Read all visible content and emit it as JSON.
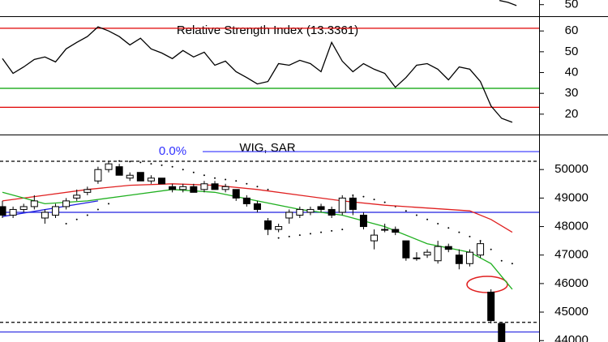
{
  "chart_data": [
    {
      "type": "line",
      "ylim": [
        47.5,
        51
      ],
      "yticks": [
        50
      ],
      "xlim": [
        -0.23,
        50.53
      ],
      "series": [
        {
          "color": "#000000",
          "x": [
            46.8,
            47.6,
            48.4
          ],
          "values": [
            50.9,
            50.5,
            49.8
          ]
        }
      ]
    },
    {
      "type": "line",
      "title": "Relative Strength Index (13.3361)",
      "ylim": [
        10.2,
        66.7
      ],
      "yticks": [
        20,
        30,
        40,
        50,
        60
      ],
      "xlim": [
        -0.23,
        50.53
      ],
      "levels": [
        {
          "value": 61.3,
          "color": "#e00000"
        },
        {
          "value": 23.3,
          "color": "#e00000"
        },
        {
          "value": 32.4,
          "color": "#00a000"
        }
      ],
      "series": [
        {
          "color": "#000000",
          "x": [
            0,
            1,
            2,
            3,
            4,
            5,
            6,
            7,
            8,
            9,
            10,
            11,
            12,
            13,
            14,
            15,
            16,
            17,
            18,
            19,
            20,
            21,
            22,
            23,
            24,
            25,
            26,
            27,
            28,
            29,
            30,
            31,
            32,
            33,
            34,
            35,
            36,
            37,
            38,
            39,
            40,
            41,
            42,
            43,
            44,
            45,
            46,
            47,
            48
          ],
          "values": [
            46.7,
            39.6,
            42.7,
            46.3,
            47.5,
            45.1,
            51.4,
            54.5,
            57.3,
            62,
            60,
            57.3,
            53.3,
            56.5,
            51.4,
            49.4,
            46.7,
            50.6,
            47.5,
            49.8,
            43.5,
            45.5,
            40.4,
            37.6,
            34.5,
            35.7,
            44.3,
            43.5,
            45.9,
            44.3,
            40.4,
            54.5,
            45.5,
            40.4,
            44.3,
            41.6,
            39.6,
            32.9,
            37.6,
            43.5,
            44.3,
            41.6,
            36.5,
            42.7,
            41.6,
            35.7,
            23.9,
            18,
            16.1
          ]
        }
      ]
    },
    {
      "type": "candlestick",
      "title": "WIG, SAR",
      "ylim": [
        43950,
        51200
      ],
      "yticks": [
        44000,
        45000,
        46000,
        47000,
        48000,
        49000,
        50000
      ],
      "xlim": [
        -0.23,
        50.53
      ],
      "levels": [
        {
          "value": 48500,
          "color": "#2020e0"
        },
        {
          "value": 44300,
          "color": "#2020e0"
        },
        {
          "value": 50290,
          "color": "#000000",
          "dash": true
        },
        {
          "value": 44640,
          "color": "#000000",
          "dash": true
        }
      ],
      "fib": {
        "label": "0.0%",
        "value": 50630,
        "color": "#3030ff"
      },
      "trend": {
        "color": "#2020e0",
        "x": [
          0,
          9
        ],
        "values": [
          48350,
          48900
        ]
      },
      "candles": {
        "x": [
          0,
          1,
          2,
          3,
          4,
          5,
          6,
          7,
          8,
          9,
          10,
          11,
          12,
          13,
          14,
          15,
          16,
          17,
          18,
          19,
          20,
          21,
          22,
          23,
          24,
          25,
          26,
          27,
          28,
          29,
          30,
          31,
          32,
          33,
          34,
          35,
          36,
          37,
          38,
          39,
          40,
          41,
          42,
          43,
          44,
          45,
          46,
          47
        ],
        "open": [
          48700,
          48400,
          48600,
          48700,
          48300,
          48400,
          48700,
          49000,
          49200,
          49600,
          50000,
          50100,
          49700,
          49900,
          49600,
          49700,
          49400,
          49300,
          49400,
          49300,
          49500,
          49300,
          49300,
          49000,
          48800,
          48200,
          47900,
          48300,
          48400,
          48500,
          48700,
          48600,
          48500,
          49000,
          48400,
          47500,
          47900,
          47900,
          47500,
          46900,
          47000,
          46800,
          47300,
          47000,
          46700,
          47000,
          45700,
          44600
        ],
        "high": [
          48900,
          48700,
          48800,
          49100,
          48600,
          48800,
          49000,
          49300,
          49400,
          50100,
          50300,
          50200,
          49900,
          49900,
          49800,
          49700,
          49500,
          49500,
          49500,
          49600,
          49600,
          49500,
          49300,
          49100,
          48900,
          48300,
          48100,
          48600,
          48700,
          48700,
          48800,
          48700,
          49100,
          49100,
          48500,
          47900,
          48100,
          48000,
          47500,
          47100,
          47200,
          47500,
          47400,
          47200,
          47200,
          47500,
          45800,
          44600
        ],
        "low": [
          48300,
          48300,
          48500,
          48600,
          48100,
          48300,
          48600,
          48900,
          49100,
          49500,
          49900,
          49800,
          49600,
          49600,
          49500,
          49500,
          49200,
          49200,
          49200,
          49200,
          49300,
          49200,
          48900,
          48700,
          48500,
          47700,
          47800,
          48100,
          48300,
          48400,
          48500,
          48300,
          48400,
          48400,
          47900,
          47200,
          47800,
          47700,
          46800,
          46800,
          46900,
          46700,
          47100,
          46500,
          46600,
          46900,
          44600,
          43900
        ],
        "close": [
          48400,
          48600,
          48700,
          48900,
          48500,
          48700,
          48900,
          49100,
          49300,
          50000,
          50200,
          49800,
          49800,
          49600,
          49700,
          49500,
          49300,
          49400,
          49200,
          49500,
          49300,
          49400,
          49000,
          48800,
          48600,
          47900,
          48000,
          48500,
          48600,
          48600,
          48600,
          48400,
          49000,
          48600,
          48000,
          47700,
          47900,
          47800,
          46900,
          46900,
          47100,
          47300,
          47200,
          46700,
          47100,
          47400,
          44700,
          43900
        ]
      },
      "sar": {
        "color": "#000000",
        "x": [
          6,
          7,
          8,
          9,
          10,
          11,
          12,
          13,
          14,
          15,
          16,
          17,
          18,
          19,
          20,
          21,
          22,
          23,
          24,
          25,
          26,
          27,
          28,
          29,
          30,
          31,
          32,
          33,
          34,
          35,
          36,
          37,
          38,
          39,
          40,
          41,
          42,
          43,
          44,
          45,
          46,
          47,
          48
        ],
        "values": [
          48100,
          48250,
          48400,
          48600,
          48800,
          50300,
          50280,
          50250,
          50200,
          50150,
          50100,
          50000,
          49900,
          49800,
          49700,
          49650,
          49600,
          49500,
          49400,
          49300,
          47600,
          47650,
          47700,
          47750,
          47800,
          47850,
          47900,
          49100,
          49050,
          48950,
          48850,
          48700,
          48550,
          48400,
          48250,
          48100,
          47950,
          47800,
          47650,
          47500,
          47200,
          46800,
          46700
        ]
      },
      "series": [
        {
          "color": "#e02020",
          "x": [
            0,
            4,
            8,
            12,
            16,
            20,
            24,
            28,
            32,
            36,
            40,
            44,
            46,
            48
          ],
          "values": [
            48900,
            49100,
            49300,
            49450,
            49500,
            49450,
            49300,
            49100,
            48900,
            48750,
            48650,
            48550,
            48250,
            47800
          ]
        },
        {
          "color": "#20b020",
          "x": [
            0,
            4,
            8,
            12,
            16,
            20,
            24,
            28,
            32,
            36,
            40,
            44,
            46,
            48
          ],
          "values": [
            49200,
            48800,
            48900,
            49100,
            49300,
            49200,
            48900,
            48600,
            48400,
            48000,
            47400,
            47100,
            46700,
            45800
          ]
        }
      ]
    }
  ]
}
